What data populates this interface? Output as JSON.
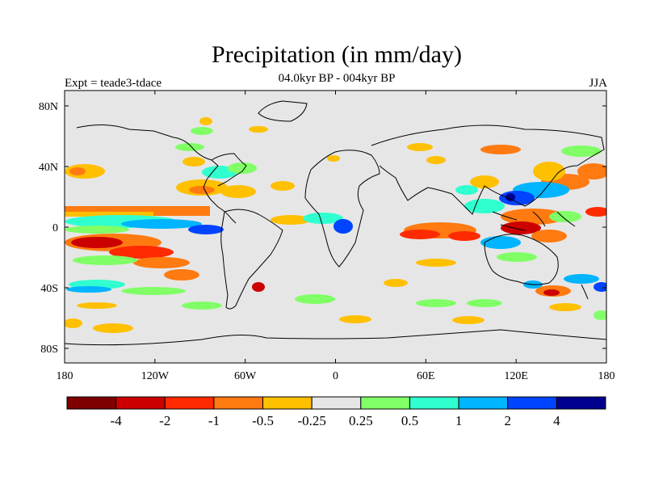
{
  "title": "Precipitation (in mm/day)",
  "subtitle": "04.0kyr BP - 004kyr BP",
  "experiment_label": "Expt = teade3-tdace",
  "season_label": "JJA",
  "map": {
    "background_color": "#e6e6e6",
    "lat_ticks": [
      "80N",
      "40N",
      "0",
      "40S",
      "80S"
    ],
    "lon_ticks": [
      "180",
      "120W",
      "60W",
      "0",
      "60E",
      "120E",
      "180"
    ]
  },
  "colorbar": {
    "colors": [
      "#7f0000",
      "#cc0000",
      "#ff2a00",
      "#ff7a10",
      "#ffc000",
      "#e6e6e6",
      "#80ff66",
      "#30ffd0",
      "#00b4ff",
      "#0044ff",
      "#00008f"
    ],
    "labels": [
      "-4",
      "-2",
      "-1",
      "-0.5",
      "-0.25",
      "0.25",
      "0.5",
      "1",
      "2",
      "4"
    ]
  }
}
